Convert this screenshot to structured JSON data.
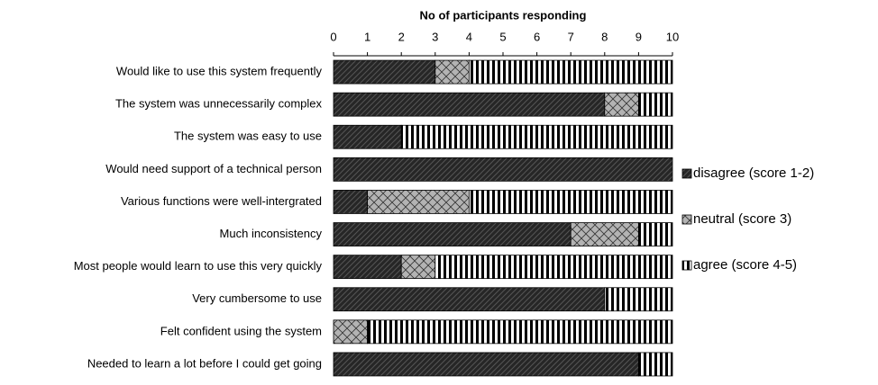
{
  "chart_data": {
    "type": "stacked-barh",
    "x_label": "No of participants responding",
    "categories": [
      "Would like to use this system frequently",
      "The system was unnecessarily complex",
      "The system was easy to use",
      "Would need support of a technical person",
      "Various functions were well-intergrated",
      "Much inconsistency",
      "Most people would learn to use this very quickly",
      "Very cumbersome to use",
      "Felt confident using the system",
      "Needed to learn a lot before I could get going"
    ],
    "series": [
      {
        "name": "disagree (score 1-2)",
        "color": "#262626",
        "values": [
          3,
          8,
          2,
          10,
          1,
          7,
          2,
          8,
          0,
          9
        ]
      },
      {
        "name": "neutral (score 3)",
        "color": "#b3b3b3",
        "values": [
          1,
          1,
          0,
          0,
          3,
          2,
          1,
          0,
          1,
          0
        ]
      },
      {
        "name": "agree (score 4-5)",
        "color": "#000000",
        "values": [
          6,
          1,
          8,
          0,
          6,
          1,
          7,
          2,
          9,
          1
        ]
      }
    ],
    "xlim": [
      0,
      10
    ],
    "xticks": [
      0,
      1,
      2,
      3,
      4,
      5,
      6,
      7,
      8,
      9,
      10
    ],
    "grid": false,
    "legend": "right"
  }
}
